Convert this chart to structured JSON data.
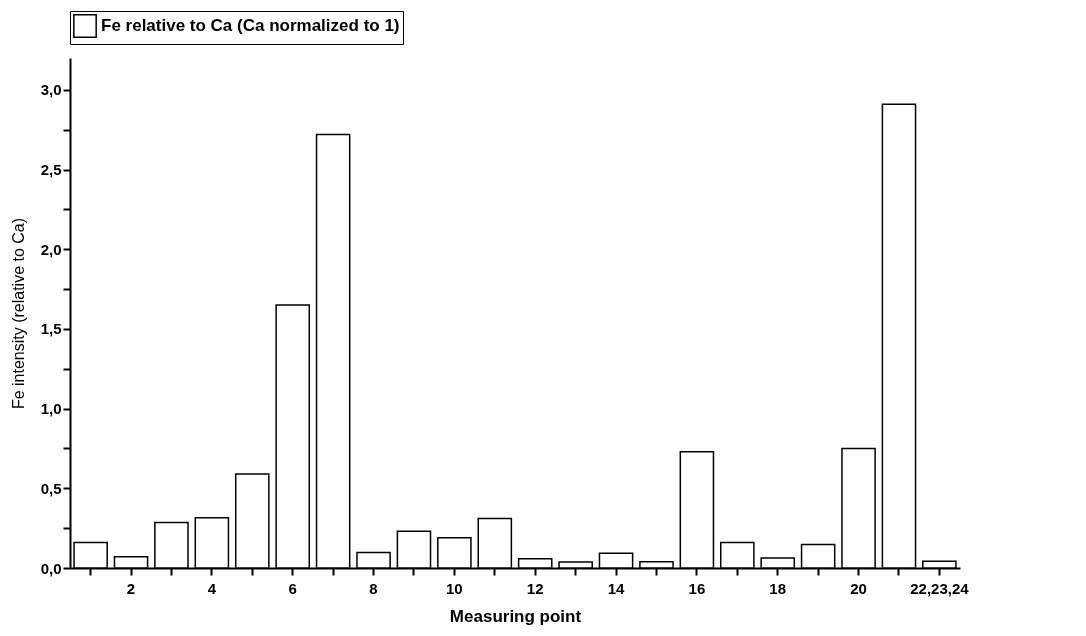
{
  "chart_data": {
    "type": "bar",
    "xlabel": "Measuring point",
    "ylabel": "Fe intensity (relative to Ca)",
    "legend": "top",
    "categories": [
      null,
      "2",
      null,
      "4",
      null,
      "6",
      null,
      "8",
      null,
      "10",
      null,
      "12",
      null,
      "14",
      null,
      "16",
      null,
      "18",
      null,
      "20",
      null,
      "22,23,24"
    ],
    "series": [
      {
        "name": "Fe relative to Ca (Ca normalized to 1)",
        "color": "#ffffff",
        "values": [
          0.16,
          0.07,
          0.285,
          0.316,
          0.59,
          1.65,
          2.72,
          0.097,
          0.23,
          0.19,
          0.31,
          0.058,
          0.037,
          0.093,
          0.039,
          0.73,
          0.16,
          0.062,
          0.147,
          0.75,
          2.91,
          0.043
        ]
      }
    ],
    "ylim": [
      0,
      3.2
    ],
    "yticks": [
      {
        "value": 0,
        "label": "0,0"
      },
      {
        "value": 0.25,
        "label": null
      },
      {
        "value": 0.5,
        "label": "0,5"
      },
      {
        "value": 0.75,
        "label": null
      },
      {
        "value": 1,
        "label": "1,0"
      },
      {
        "value": 1.25,
        "label": null
      },
      {
        "value": 1.5,
        "label": "1,5"
      },
      {
        "value": 1.75,
        "label": null
      },
      {
        "value": 2,
        "label": "2,0"
      },
      {
        "value": 2.25,
        "label": null
      },
      {
        "value": 2.5,
        "label": "2,5"
      },
      {
        "value": 2.75,
        "label": null
      },
      {
        "value": 3,
        "label": "3,0"
      }
    ],
    "grid": false
  }
}
